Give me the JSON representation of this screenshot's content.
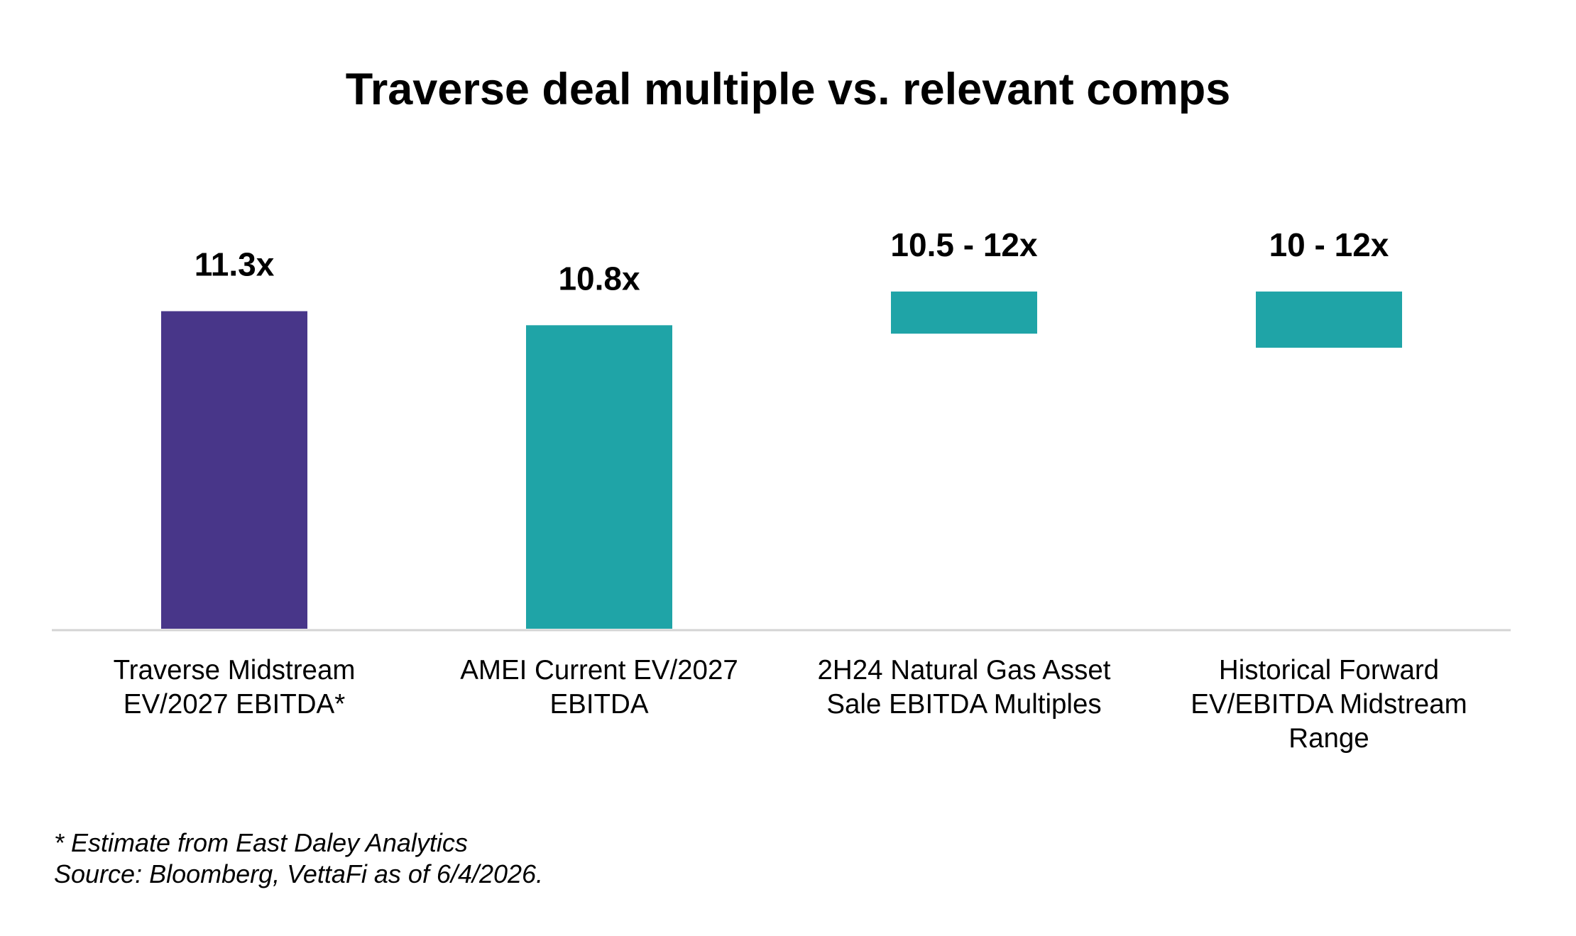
{
  "chart_data": {
    "type": "bar",
    "title": "Traverse deal multiple vs. relevant comps",
    "categories": [
      "Traverse Midstream EV/2027 EBITDA*",
      "AMEI Current EV/2027 EBITDA",
      "2H24 Natural Gas Asset Sale EBITDA Multiples",
      "Historical Forward EV/EBITDA Midstream Range"
    ],
    "series": [
      {
        "values": [
          {
            "low": 0,
            "high": 11.3,
            "label": "11.3x",
            "color": "#483689"
          },
          {
            "low": 0,
            "high": 10.8,
            "label": "10.8x",
            "color": "#1fa4a7"
          },
          {
            "low": 10.5,
            "high": 12,
            "label": "10.5 - 12x",
            "color": "#1fa4a7"
          },
          {
            "low": 10,
            "high": 12,
            "label": "10 - 12x",
            "color": "#1fa4a7"
          }
        ]
      }
    ],
    "ylim": [
      0,
      12
    ],
    "grid": false,
    "legend": "none"
  },
  "labels": {
    "cat0": [
      "Traverse Midstream",
      "EV/2027 EBITDA*"
    ],
    "cat1": [
      "AMEI Current EV/2027",
      "EBITDA"
    ],
    "cat2": [
      "2H24 Natural Gas Asset",
      "Sale EBITDA Multiples"
    ],
    "cat3": [
      "Historical Forward",
      "EV/EBITDA Midstream",
      "Range"
    ]
  },
  "footnotes": {
    "estimate": "* Estimate from East Daley Analytics",
    "source": "Source: Bloomberg, VettaFi as of 6/4/2026."
  }
}
